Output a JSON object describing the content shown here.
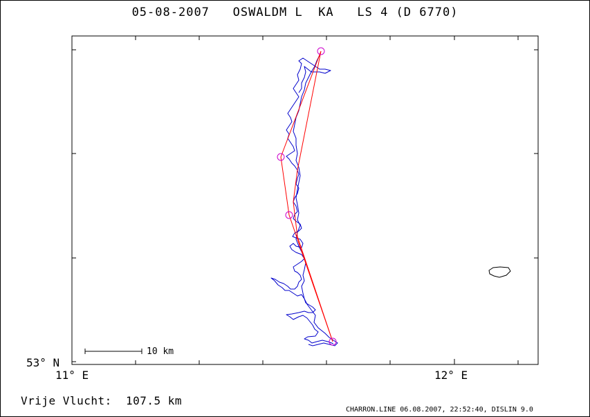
{
  "header": {
    "title": "05-08-2007   OSWALDM L  KA   LS 4 (D 6770)"
  },
  "axes": {
    "corner_lat_label": "53° N",
    "lon_labels": [
      "11° E",
      "12° E"
    ]
  },
  "scale_bar": {
    "label": "10 km"
  },
  "summary": {
    "distance_text": "Vrije Vlucht:  107.5 km"
  },
  "footer": {
    "text": "CHARRON.LINE 06.08.2007, 22:52:40, DISLIN 9.0"
  },
  "colors": {
    "track": "#0000cc",
    "task_line": "#ff0000",
    "turnpoint": "#cc00cc",
    "frame": "#000000"
  }
}
